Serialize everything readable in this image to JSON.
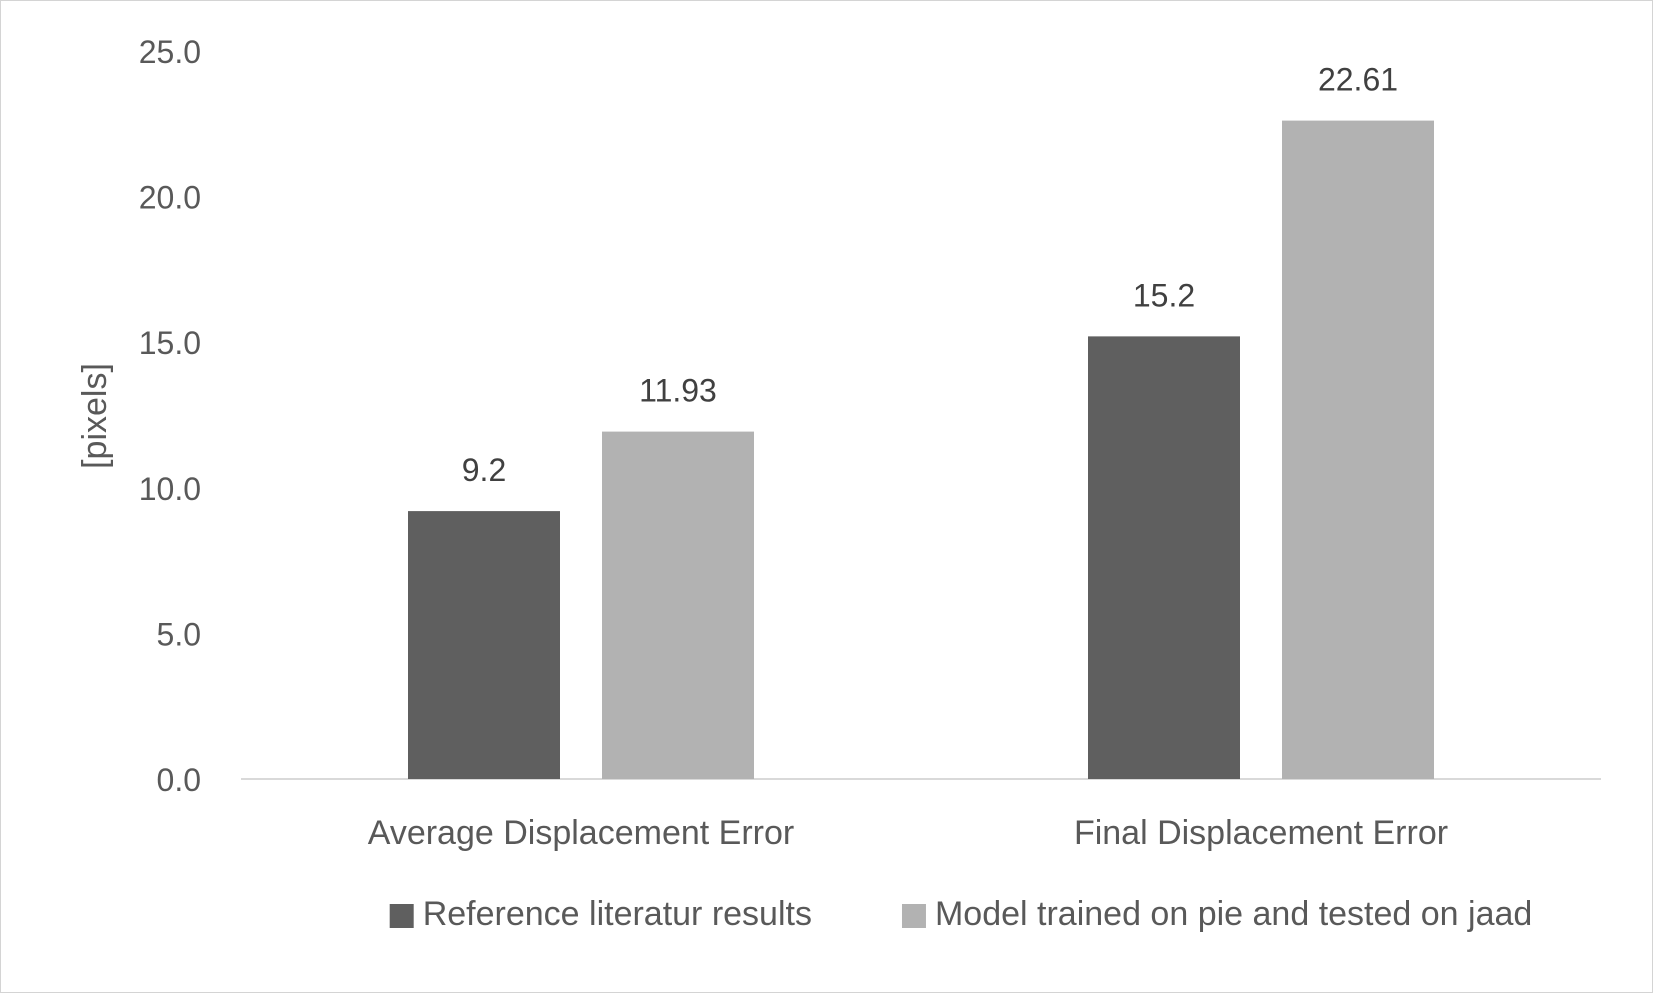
{
  "chart_data": {
    "type": "bar",
    "title": "",
    "xlabel": "",
    "ylabel": "[pixels]",
    "ylim": [
      0,
      25
    ],
    "yticks": [
      "0.0",
      "5.0",
      "10.0",
      "15.0",
      "20.0",
      "25.0"
    ],
    "grid": false,
    "legend_position": "bottom",
    "categories": [
      "Average Displacement Error",
      "Final Displacement Error"
    ],
    "series": [
      {
        "name": "Reference literatur results",
        "values": [
          9.2,
          15.2
        ],
        "labels": [
          "9.2",
          "15.2"
        ],
        "color": "#5f5f5f"
      },
      {
        "name": "Model trained on pie and tested on jaad",
        "values": [
          11.93,
          22.61
        ],
        "labels": [
          "11.93",
          "22.61"
        ],
        "color": "#b2b2b2"
      }
    ]
  }
}
